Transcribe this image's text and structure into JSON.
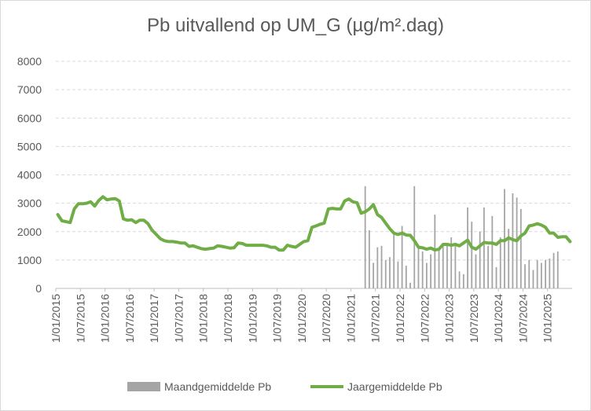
{
  "chart_data": {
    "type": "bar+line",
    "title": "Pb uitvallend op UM_G (µg/m².dag)",
    "ylim": [
      0,
      8000
    ],
    "yticks": [
      0,
      1000,
      2000,
      3000,
      4000,
      5000,
      6000,
      7000,
      8000
    ],
    "xticks": [
      "1/01/2015",
      "1/07/2015",
      "1/01/2016",
      "1/07/2016",
      "1/01/2017",
      "1/07/2017",
      "1/01/2018",
      "1/07/2018",
      "1/01/2019",
      "1/07/2019",
      "1/01/2020",
      "1/07/2020",
      "1/01/2021",
      "1/07/2021",
      "1/01/2022",
      "1/07/2022",
      "1/01/2023",
      "1/07/2023",
      "1/01/2024",
      "1/07/2024",
      "1/01/2025"
    ],
    "grid": true,
    "legend_position": "bottom",
    "colors": {
      "bars": "#a5a5a5",
      "line": "#70ad47"
    },
    "series": [
      {
        "name": "Maandgemiddelde Pb",
        "type": "bar",
        "points": [
          [
            "2021-04",
            3600
          ],
          [
            "2021-05",
            2050
          ],
          [
            "2021-06",
            900
          ],
          [
            "2021-07",
            1450
          ],
          [
            "2021-08",
            1500
          ],
          [
            "2021-09",
            1000
          ],
          [
            "2021-10",
            1100
          ],
          [
            "2021-11",
            1900
          ],
          [
            "2021-12",
            950
          ],
          [
            "2022-01",
            2200
          ],
          [
            "2022-02",
            800
          ],
          [
            "2022-03",
            200
          ],
          [
            "2022-04",
            3600
          ],
          [
            "2022-05",
            1400
          ],
          [
            "2022-06",
            1300
          ],
          [
            "2022-07",
            900
          ],
          [
            "2022-08",
            1200
          ],
          [
            "2022-09",
            2600
          ],
          [
            "2022-10",
            1400
          ],
          [
            "2022-11",
            1600
          ],
          [
            "2022-12",
            1500
          ],
          [
            "2023-01",
            1800
          ],
          [
            "2023-02",
            1500
          ],
          [
            "2023-03",
            600
          ],
          [
            "2023-04",
            500
          ],
          [
            "2023-05",
            2850
          ],
          [
            "2023-06",
            2350
          ],
          [
            "2023-07",
            1200
          ],
          [
            "2023-08",
            2000
          ],
          [
            "2023-09",
            2850
          ],
          [
            "2023-10",
            1500
          ],
          [
            "2023-11",
            2550
          ],
          [
            "2023-12",
            750
          ],
          [
            "2024-01",
            1800
          ],
          [
            "2024-02",
            3500
          ],
          [
            "2024-03",
            2100
          ],
          [
            "2024-04",
            3350
          ],
          [
            "2024-05",
            3200
          ],
          [
            "2024-06",
            2800
          ],
          [
            "2024-07",
            850
          ],
          [
            "2024-08",
            1000
          ],
          [
            "2024-09",
            650
          ],
          [
            "2024-10",
            1000
          ],
          [
            "2024-11",
            900
          ],
          [
            "2024-12",
            1000
          ],
          [
            "2025-01",
            1050
          ],
          [
            "2025-02",
            1250
          ],
          [
            "2025-03",
            1300
          ]
        ]
      },
      {
        "name": "Jaargemiddelde Pb",
        "type": "line",
        "points": [
          [
            "2015-01",
            2600
          ],
          [
            "2015-02",
            2380
          ],
          [
            "2015-03",
            2350
          ],
          [
            "2015-04",
            2320
          ],
          [
            "2015-05",
            2800
          ],
          [
            "2015-06",
            2980
          ],
          [
            "2015-07",
            2980
          ],
          [
            "2015-08",
            3000
          ],
          [
            "2015-09",
            3050
          ],
          [
            "2015-10",
            2900
          ],
          [
            "2015-11",
            3100
          ],
          [
            "2015-12",
            3230
          ],
          [
            "2016-01",
            3120
          ],
          [
            "2016-02",
            3150
          ],
          [
            "2016-03",
            3160
          ],
          [
            "2016-04",
            3080
          ],
          [
            "2016-05",
            2450
          ],
          [
            "2016-06",
            2400
          ],
          [
            "2016-07",
            2420
          ],
          [
            "2016-08",
            2320
          ],
          [
            "2016-09",
            2400
          ],
          [
            "2016-10",
            2400
          ],
          [
            "2016-11",
            2280
          ],
          [
            "2016-12",
            2050
          ],
          [
            "2017-01",
            1900
          ],
          [
            "2017-02",
            1750
          ],
          [
            "2017-03",
            1680
          ],
          [
            "2017-04",
            1650
          ],
          [
            "2017-05",
            1650
          ],
          [
            "2017-06",
            1630
          ],
          [
            "2017-07",
            1600
          ],
          [
            "2017-08",
            1600
          ],
          [
            "2017-09",
            1480
          ],
          [
            "2017-10",
            1500
          ],
          [
            "2017-11",
            1450
          ],
          [
            "2017-12",
            1400
          ],
          [
            "2018-01",
            1380
          ],
          [
            "2018-02",
            1400
          ],
          [
            "2018-03",
            1420
          ],
          [
            "2018-04",
            1500
          ],
          [
            "2018-05",
            1480
          ],
          [
            "2018-06",
            1450
          ],
          [
            "2018-07",
            1420
          ],
          [
            "2018-08",
            1430
          ],
          [
            "2018-09",
            1600
          ],
          [
            "2018-10",
            1580
          ],
          [
            "2018-11",
            1520
          ],
          [
            "2018-12",
            1520
          ],
          [
            "2019-01",
            1520
          ],
          [
            "2019-02",
            1520
          ],
          [
            "2019-03",
            1520
          ],
          [
            "2019-04",
            1500
          ],
          [
            "2019-05",
            1450
          ],
          [
            "2019-06",
            1450
          ],
          [
            "2019-07",
            1350
          ],
          [
            "2019-08",
            1350
          ],
          [
            "2019-09",
            1520
          ],
          [
            "2019-10",
            1480
          ],
          [
            "2019-11",
            1450
          ],
          [
            "2019-12",
            1550
          ],
          [
            "2020-01",
            1650
          ],
          [
            "2020-02",
            1680
          ],
          [
            "2020-03",
            2150
          ],
          [
            "2020-04",
            2200
          ],
          [
            "2020-05",
            2260
          ],
          [
            "2020-06",
            2300
          ],
          [
            "2020-07",
            2800
          ],
          [
            "2020-08",
            2820
          ],
          [
            "2020-09",
            2800
          ],
          [
            "2020-10",
            2800
          ],
          [
            "2020-11",
            3080
          ],
          [
            "2020-12",
            3150
          ],
          [
            "2021-01",
            3050
          ],
          [
            "2021-02",
            3020
          ],
          [
            "2021-03",
            2650
          ],
          [
            "2021-04",
            2700
          ],
          [
            "2021-05",
            2800
          ],
          [
            "2021-06",
            2950
          ],
          [
            "2021-07",
            2600
          ],
          [
            "2021-08",
            2500
          ],
          [
            "2021-09",
            2300
          ],
          [
            "2021-10",
            2100
          ],
          [
            "2021-11",
            1950
          ],
          [
            "2021-12",
            1900
          ],
          [
            "2022-01",
            1950
          ],
          [
            "2022-02",
            1880
          ],
          [
            "2022-03",
            1870
          ],
          [
            "2022-04",
            1680
          ],
          [
            "2022-05",
            1450
          ],
          [
            "2022-06",
            1430
          ],
          [
            "2022-07",
            1380
          ],
          [
            "2022-08",
            1420
          ],
          [
            "2022-09",
            1350
          ],
          [
            "2022-10",
            1380
          ],
          [
            "2022-11",
            1550
          ],
          [
            "2022-12",
            1550
          ],
          [
            "2023-01",
            1520
          ],
          [
            "2023-02",
            1550
          ],
          [
            "2023-03",
            1500
          ],
          [
            "2023-04",
            1600
          ],
          [
            "2023-05",
            1700
          ],
          [
            "2023-06",
            1450
          ],
          [
            "2023-07",
            1380
          ],
          [
            "2023-08",
            1500
          ],
          [
            "2023-09",
            1620
          ],
          [
            "2023-10",
            1600
          ],
          [
            "2023-11",
            1600
          ],
          [
            "2023-12",
            1550
          ],
          [
            "2024-01",
            1680
          ],
          [
            "2024-02",
            1680
          ],
          [
            "2024-03",
            1780
          ],
          [
            "2024-04",
            1720
          ],
          [
            "2024-05",
            1680
          ],
          [
            "2024-06",
            1850
          ],
          [
            "2024-07",
            1950
          ],
          [
            "2024-08",
            2200
          ],
          [
            "2024-09",
            2230
          ],
          [
            "2024-10",
            2280
          ],
          [
            "2024-11",
            2230
          ],
          [
            "2024-12",
            2150
          ],
          [
            "2025-01",
            1950
          ],
          [
            "2025-02",
            1950
          ],
          [
            "2025-03",
            1800
          ],
          [
            "2025-04",
            1820
          ],
          [
            "2025-05",
            1820
          ],
          [
            "2025-06",
            1650
          ]
        ]
      }
    ]
  }
}
